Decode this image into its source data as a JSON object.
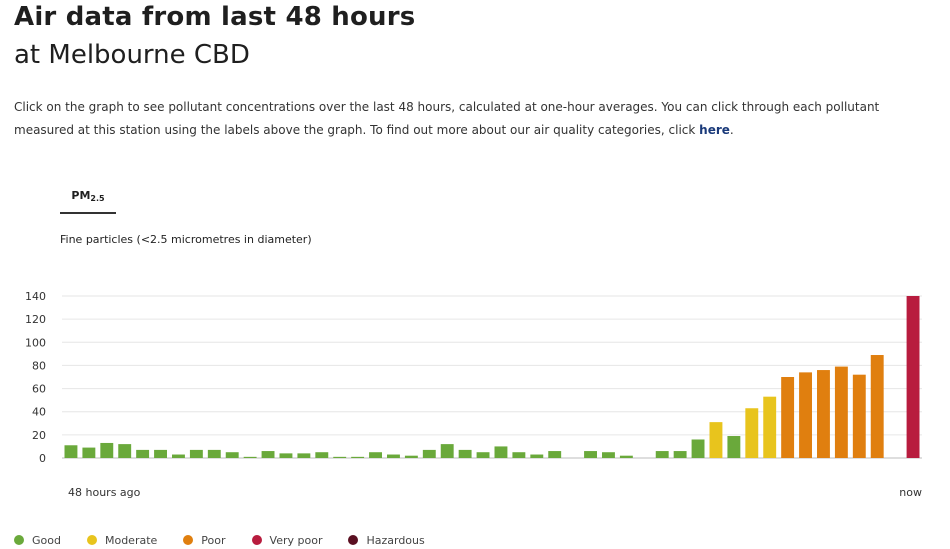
{
  "header": {
    "title": "Air data from last 48 hours",
    "subtitle": "at Melbourne CBD"
  },
  "intro": {
    "text": "Click on the graph to see pollutant concentrations over the last 48 hours, calculated at one-hour averages. You can click through each pollutant measured at this station using the labels above the graph. To find out more about our air quality categories, click ",
    "link_label": "here",
    "end": "."
  },
  "tabs": [
    {
      "label_main": "PM",
      "label_sub": "2.5"
    }
  ],
  "chart_description": "Fine particles (<2.5 micrometres in diameter)",
  "legend": [
    {
      "label": "Good",
      "color": "#6aa93b"
    },
    {
      "label": "Moderate",
      "color": "#e8c41d"
    },
    {
      "label": "Poor",
      "color": "#e07f0f"
    },
    {
      "label": "Very poor",
      "color": "#b81c3e"
    },
    {
      "label": "Hazardous",
      "color": "#5a0f21"
    }
  ],
  "chart_data": {
    "type": "bar",
    "ylim": [
      0,
      140
    ],
    "yticks": [
      0,
      20,
      40,
      60,
      80,
      100,
      120,
      140
    ],
    "x_start_label": "48 hours ago",
    "x_end_label": "now",
    "grid": true,
    "category_colors": {
      "good": "#6aa93b",
      "moderate": "#e8c41d",
      "poor": "#e07f0f",
      "very_poor": "#b81c3e"
    },
    "values": [
      11,
      9,
      13,
      12,
      7,
      7,
      3,
      7,
      7,
      5,
      1,
      6,
      4,
      4,
      5,
      1,
      1,
      5,
      3,
      2,
      7,
      12,
      7,
      5,
      10,
      5,
      3,
      6,
      null,
      6,
      5,
      2,
      null,
      6,
      6,
      16,
      31,
      19,
      43,
      53,
      70,
      74,
      76,
      79,
      72,
      89,
      null,
      140
    ],
    "categories": [
      "good",
      "good",
      "good",
      "good",
      "good",
      "good",
      "good",
      "good",
      "good",
      "good",
      "good",
      "good",
      "good",
      "good",
      "good",
      "good",
      "good",
      "good",
      "good",
      "good",
      "good",
      "good",
      "good",
      "good",
      "good",
      "good",
      "good",
      "good",
      null,
      "good",
      "good",
      "good",
      null,
      "good",
      "good",
      "good",
      "moderate",
      "good",
      "moderate",
      "moderate",
      "poor",
      "poor",
      "poor",
      "poor",
      "poor",
      "poor",
      null,
      "very_poor"
    ]
  }
}
